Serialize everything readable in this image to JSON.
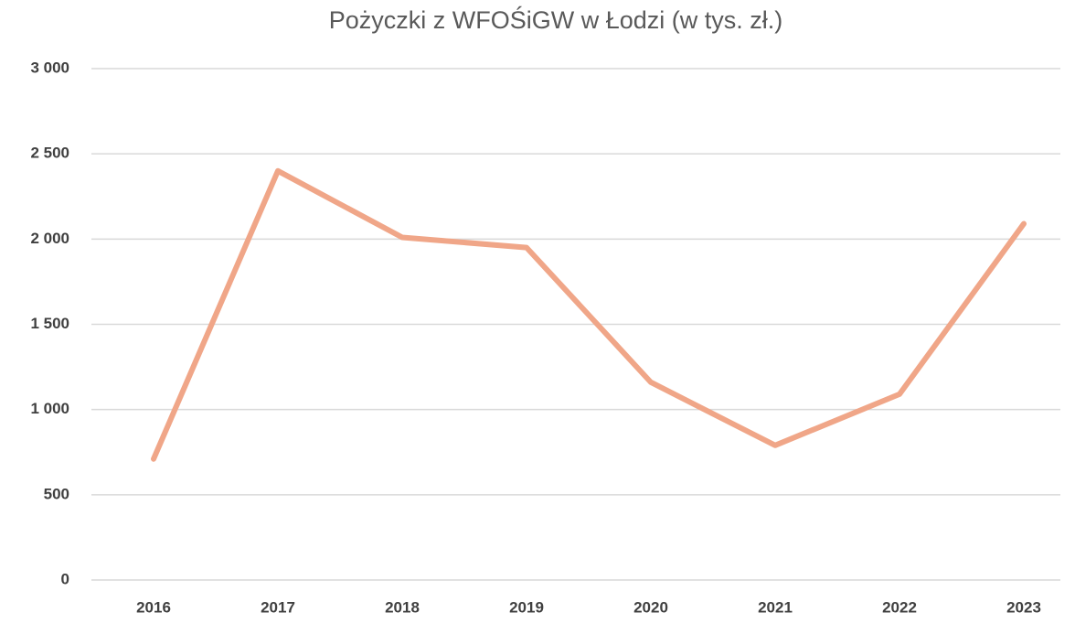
{
  "chart_data": {
    "type": "line",
    "title": "Pożyczki z WFOŚiGW w Łodzi (w tys. zł.)",
    "categories": [
      "2016",
      "2017",
      "2018",
      "2019",
      "2020",
      "2021",
      "2022",
      "2023"
    ],
    "series": [
      {
        "name": "Pożyczki",
        "color": "#f0a688",
        "values": [
          710,
          2400,
          2010,
          1950,
          1160,
          790,
          1090,
          2090
        ]
      }
    ],
    "ylim": [
      0,
      3000
    ],
    "yticks": [
      0,
      500,
      {
        "value": 1000,
        "label": "1 000"
      },
      {
        "value": 1500,
        "label": "1 500"
      },
      {
        "value": 2000,
        "label": "2 000"
      },
      {
        "value": 2500,
        "label": "2 500"
      },
      {
        "value": 3000,
        "label": "3 000"
      }
    ],
    "grid": true
  }
}
